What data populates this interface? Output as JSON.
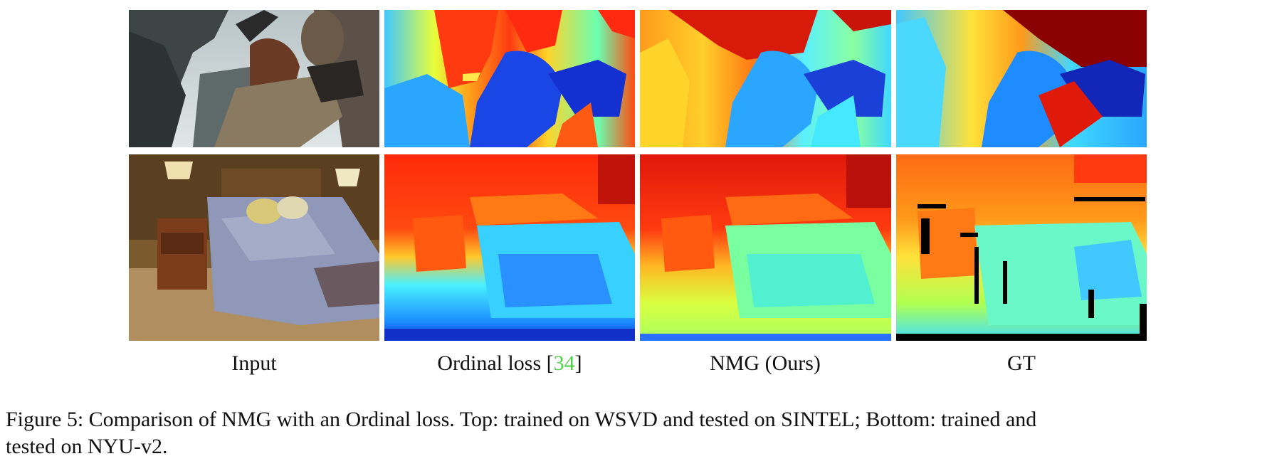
{
  "figure": {
    "columns": [
      {
        "label": "Input"
      },
      {
        "label_prefix": "Ordinal loss [",
        "label_cite": "34",
        "label_suffix": "]"
      },
      {
        "label": "NMG (Ours)"
      },
      {
        "label": "GT"
      }
    ],
    "caption": {
      "line1": "Figure 5: Comparison of NMG with an Ordinal loss. Top: trained on WSVD and tested on SINTEL; Bottom: trained and",
      "line2": "tested on NYU-v2."
    },
    "colors": {
      "citation": "#4fd14a",
      "jet_far": "#8b0000",
      "jet_near": "#00008b"
    },
    "tiles": [
      {
        "row": "top",
        "column": "input",
        "content": "sintel-scene-photo"
      },
      {
        "row": "top",
        "column": "ordinal",
        "content": "depth-map-jet"
      },
      {
        "row": "top",
        "column": "nmg",
        "content": "depth-map-jet"
      },
      {
        "row": "top",
        "column": "gt",
        "content": "depth-map-jet"
      },
      {
        "row": "bottom",
        "column": "input",
        "content": "bedroom-photo"
      },
      {
        "row": "bottom",
        "column": "ordinal",
        "content": "depth-map-jet"
      },
      {
        "row": "bottom",
        "column": "nmg",
        "content": "depth-map-jet"
      },
      {
        "row": "bottom",
        "column": "gt",
        "content": "depth-map-jet"
      }
    ]
  }
}
